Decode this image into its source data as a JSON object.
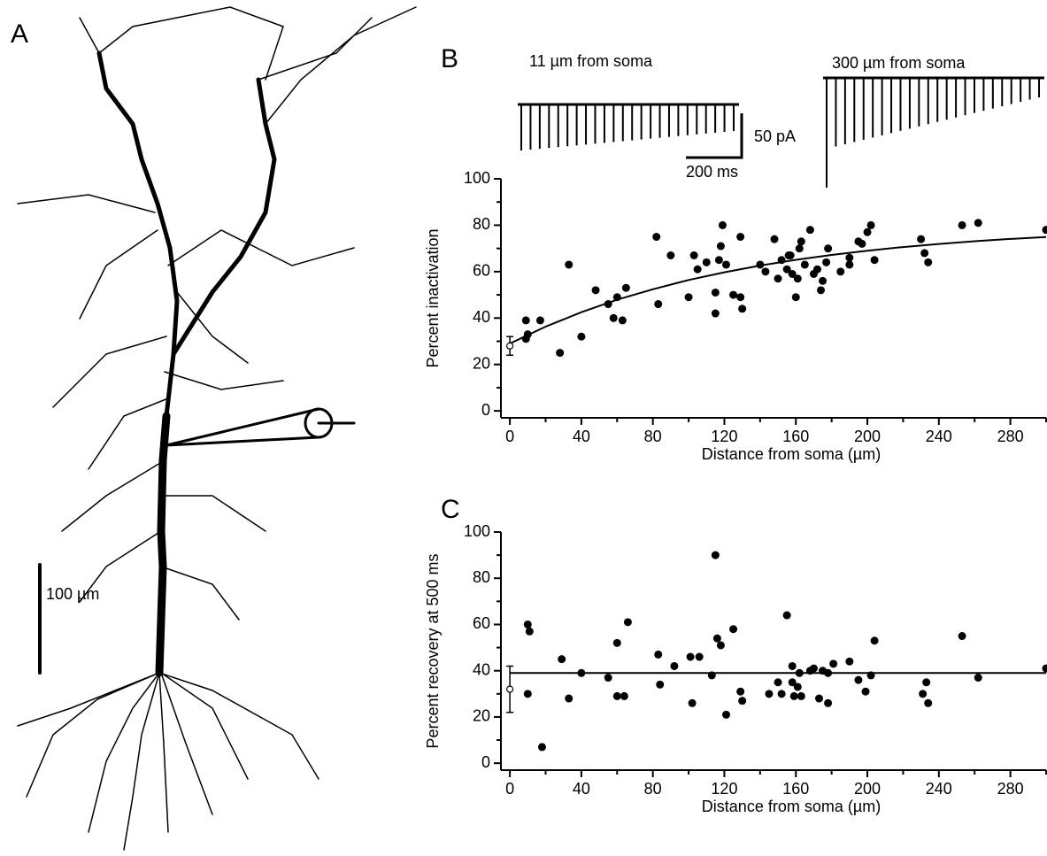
{
  "panels": {
    "A": "A",
    "B": "B",
    "C": "C"
  },
  "neuron_scale_label": "100 µm",
  "trace_labels": [
    "11 µm from soma",
    "300 µm from soma"
  ],
  "trace_scale": {
    "y_label": "50 pA",
    "x_label": "200 ms"
  },
  "chart_data": [
    {
      "type": "scatter",
      "ylabel": "Percent inactivation",
      "xlabel": "Distance from soma (µm)",
      "xlim": [
        -5,
        300
      ],
      "ylim": [
        -3,
        100
      ],
      "xticks": [
        0,
        40,
        80,
        120,
        160,
        200,
        240,
        280
      ],
      "xminorticks": [
        20,
        60,
        100,
        140,
        180,
        220,
        260,
        300
      ],
      "yticks": [
        0,
        20,
        40,
        60,
        80,
        100
      ],
      "yminorticks": [
        10,
        30,
        50,
        70,
        90
      ],
      "color": "#000000",
      "x": [
        9,
        10,
        9,
        17,
        28,
        33,
        40,
        48,
        55,
        58,
        60,
        63,
        65,
        82,
        83,
        90,
        100,
        103,
        105,
        110,
        115,
        115,
        117,
        118,
        119,
        121,
        125,
        129,
        129,
        130,
        140,
        143,
        148,
        150,
        152,
        155,
        156,
        157,
        158,
        160,
        161,
        162,
        163,
        165,
        168,
        170,
        172,
        174,
        175,
        177,
        178,
        185,
        190,
        190,
        195,
        197,
        200,
        202,
        204,
        230,
        232,
        234,
        253,
        262,
        300
      ],
      "values": [
        31,
        33,
        39,
        39,
        25,
        63,
        32,
        52,
        46,
        40,
        49,
        39,
        53,
        75,
        46,
        67,
        49,
        67,
        61,
        64,
        42,
        51,
        65,
        71,
        80,
        63,
        50,
        49,
        75,
        44,
        63,
        60,
        74,
        57,
        65,
        61,
        67,
        67,
        59,
        49,
        57,
        70,
        73,
        63,
        78,
        59,
        61,
        52,
        56,
        64,
        70,
        60,
        66,
        63,
        73,
        72,
        77,
        80,
        65,
        74,
        68,
        64,
        80,
        81,
        78
      ],
      "mean": {
        "x": 0,
        "value": 28,
        "error": 4
      },
      "fit": {
        "x": [
          0,
          20,
          40,
          60,
          80,
          100,
          120,
          140,
          160,
          180,
          200,
          220,
          240,
          260,
          280,
          300
        ],
        "values": [
          29,
          36.3,
          42.5,
          47.9,
          52.4,
          56.4,
          59.7,
          62.6,
          65.1,
          67.2,
          69,
          70.6,
          71.9,
          73.1,
          74.1,
          74.9
        ]
      }
    },
    {
      "type": "scatter",
      "ylabel": "Percent recovery at 500 ms",
      "xlabel": "Distance from soma (µm)",
      "xlim": [
        -5,
        300
      ],
      "ylim": [
        -3,
        100
      ],
      "xticks": [
        0,
        40,
        80,
        120,
        160,
        200,
        240,
        280
      ],
      "xminorticks": [
        20,
        60,
        100,
        140,
        180,
        220,
        260,
        300
      ],
      "yticks": [
        0,
        20,
        40,
        60,
        80,
        100
      ],
      "yminorticks": [
        10,
        30,
        50,
        70,
        90
      ],
      "color": "#000000",
      "x": [
        10,
        11,
        10,
        18,
        29,
        33,
        40,
        55,
        60,
        60,
        64,
        66,
        83,
        84,
        92,
        101,
        102,
        106,
        113,
        115,
        116,
        118,
        121,
        125,
        129,
        130,
        145,
        150,
        152,
        155,
        158,
        158,
        159,
        161,
        162,
        163,
        168,
        170,
        173,
        175,
        178,
        178,
        181,
        190,
        195,
        199,
        202,
        204,
        231,
        233,
        234,
        253,
        262,
        300
      ],
      "values": [
        60,
        57,
        30,
        7,
        45,
        28,
        39,
        37,
        52,
        29,
        29,
        61,
        47,
        34,
        42,
        46,
        26,
        46,
        38,
        90,
        54,
        51,
        21,
        58,
        31,
        27,
        30,
        35,
        30,
        64,
        42,
        35,
        29,
        33,
        39,
        29,
        40,
        41,
        28,
        40,
        39,
        26,
        43,
        44,
        36,
        31,
        38,
        53,
        30,
        35,
        26,
        55,
        37,
        41
      ],
      "mean": {
        "x": 0,
        "value": 32,
        "error": 10
      },
      "fit": {
        "x": [
          0,
          300
        ],
        "values": [
          39,
          39
        ]
      }
    }
  ]
}
